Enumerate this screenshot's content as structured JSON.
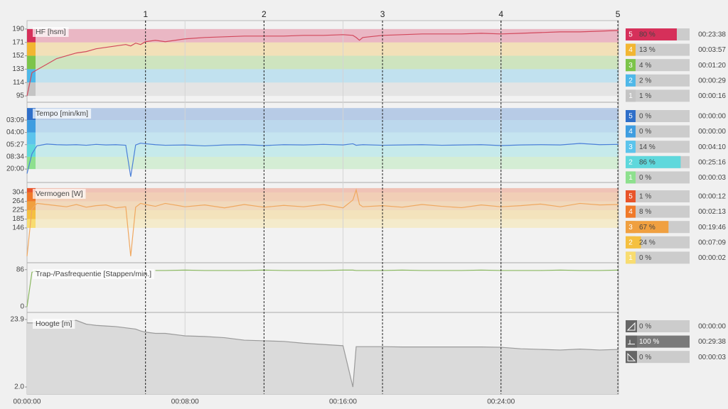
{
  "laps": [
    {
      "label": "1",
      "x": 360
    },
    {
      "label": "2",
      "x": 720
    },
    {
      "label": "3",
      "x": 1080
    },
    {
      "label": "4",
      "x": 1440
    },
    {
      "label": "5",
      "x": 1795
    }
  ],
  "time_axis": {
    "xlim": [
      0,
      1797
    ],
    "xticks": [
      {
        "value": 0,
        "label": "00:00:00"
      },
      {
        "value": 480,
        "label": "00:08:00"
      },
      {
        "value": 960,
        "label": "00:16:00"
      },
      {
        "value": 1440,
        "label": "00:24:00"
      }
    ]
  },
  "chart_data": [
    {
      "type": "line",
      "title": "HF [hsm]",
      "x": [
        0,
        15,
        30,
        60,
        90,
        120,
        150,
        180,
        210,
        240,
        270,
        300,
        315,
        330,
        345,
        360,
        390,
        420,
        480,
        540,
        600,
        660,
        720,
        780,
        840,
        900,
        960,
        990,
        1000,
        1010,
        1020,
        1080,
        1140,
        1200,
        1260,
        1320,
        1380,
        1440,
        1500,
        1560,
        1620,
        1680,
        1740,
        1797
      ],
      "series": [
        {
          "color": "#d2485c",
          "values": [
            95,
            128,
            132,
            140,
            148,
            152,
            156,
            158,
            162,
            164,
            166,
            168,
            166,
            170,
            168,
            172,
            174,
            172,
            176,
            178,
            179,
            180,
            180,
            180,
            181,
            181,
            182,
            181,
            178,
            174,
            178,
            181,
            182,
            183,
            183,
            183,
            184,
            183,
            184,
            185,
            186,
            186,
            187,
            188
          ]
        }
      ],
      "ylim": [
        86,
        202
      ],
      "yticks": [
        190,
        171,
        152,
        133,
        114,
        95
      ],
      "zones": [
        {
          "label": "5",
          "min": 171,
          "max": 190,
          "color": "#d6305a",
          "share": 80,
          "share_label": "80 %",
          "time": "00:23:38"
        },
        {
          "label": "4",
          "min": 152,
          "max": 171,
          "color": "#f2b632",
          "share": 13,
          "share_label": "13 %",
          "time": "00:03:57"
        },
        {
          "label": "3",
          "min": 133,
          "max": 152,
          "color": "#7cc44a",
          "share": 4,
          "share_label": "4 %",
          "time": "00:01:20"
        },
        {
          "label": "2",
          "min": 114,
          "max": 133,
          "color": "#4fb8e8",
          "share": 2,
          "share_label": "2 %",
          "time": "00:00:29"
        },
        {
          "label": "1",
          "min": 95,
          "max": 114,
          "color": "#c4c4c4",
          "share": 1,
          "share_label": "1 %",
          "time": "00:00:16"
        }
      ]
    },
    {
      "type": "line",
      "title": "Tempo [min/km]",
      "x": [
        0,
        15,
        30,
        60,
        90,
        120,
        150,
        180,
        210,
        240,
        270,
        300,
        315,
        330,
        345,
        360,
        390,
        420,
        480,
        540,
        600,
        660,
        720,
        780,
        840,
        900,
        960,
        990,
        1000,
        1010,
        1020,
        1080,
        1140,
        1200,
        1260,
        1320,
        1380,
        1440,
        1500,
        1560,
        1620,
        1680,
        1740,
        1797
      ],
      "series": [
        {
          "color": "#4a7fd8",
          "values": [
            1.5,
            8,
            10.6,
            11.2,
            11.0,
            10.9,
            11.0,
            10.8,
            11.1,
            10.9,
            11.0,
            10.8,
            0.5,
            10.9,
            11.5,
            11.3,
            11.0,
            10.8,
            10.9,
            10.6,
            10.9,
            11.0,
            10.7,
            11.0,
            10.9,
            11.1,
            10.9,
            11.3,
            10.8,
            10.9,
            11.0,
            10.8,
            10.9,
            11.0,
            10.8,
            10.9,
            11.0,
            10.7,
            10.9,
            11.0,
            10.9,
            11.4,
            11.0,
            11.1
          ]
        }
      ],
      "ylim": [
        -1.4,
        24.9
      ],
      "yticks": [
        {
          "value": 19.05,
          "label": "03:09"
        },
        {
          "value": 15,
          "label": "04:00"
        },
        {
          "value": 11.01,
          "label": "05:27"
        },
        {
          "value": 7,
          "label": "08:34"
        },
        {
          "value": 3,
          "label": "20:00"
        }
      ],
      "zones": [
        {
          "label": "5",
          "min": 19.05,
          "max": 23,
          "color": "#2f6fc9",
          "share": 0,
          "share_label": "0 %",
          "time": "00:00:00"
        },
        {
          "label": "4",
          "min": 15,
          "max": 19.05,
          "color": "#3f9de0",
          "share": 0,
          "share_label": "0 %",
          "time": "00:00:00"
        },
        {
          "label": "3",
          "min": 11.01,
          "max": 15,
          "color": "#5cc4ec",
          "share": 14,
          "share_label": "14 %",
          "time": "00:04:10"
        },
        {
          "label": "2",
          "min": 7,
          "max": 11.01,
          "color": "#5fd8dc",
          "share": 86,
          "share_label": "86 %",
          "time": "00:25:16"
        },
        {
          "label": "1",
          "min": 3,
          "max": 7,
          "color": "#8ee08e",
          "share": 0,
          "share_label": "0 %",
          "time": "00:00:03"
        }
      ]
    },
    {
      "type": "line",
      "title": "Vermogen [W]",
      "x": [
        0,
        15,
        30,
        60,
        90,
        120,
        150,
        180,
        210,
        240,
        270,
        300,
        315,
        330,
        345,
        360,
        390,
        420,
        480,
        540,
        600,
        660,
        720,
        780,
        840,
        900,
        960,
        990,
        1000,
        1010,
        1020,
        1080,
        1140,
        1200,
        1260,
        1320,
        1380,
        1440,
        1500,
        1560,
        1620,
        1680,
        1740,
        1797
      ],
      "series": [
        {
          "color": "#f0a860",
          "values": [
            20,
            230,
            255,
            250,
            245,
            240,
            250,
            238,
            245,
            248,
            235,
            240,
            20,
            238,
            255,
            250,
            242,
            255,
            240,
            248,
            235,
            250,
            238,
            246,
            240,
            250,
            235,
            270,
            315,
            250,
            240,
            245,
            238,
            250,
            242,
            236,
            248,
            240,
            245,
            252,
            240,
            255,
            248,
            250
          ]
        }
      ],
      "ylim": [
        -9,
        348
      ],
      "yticks": [
        304,
        264,
        225,
        185,
        146
      ],
      "zones": [
        {
          "label": "5",
          "min": 304,
          "max": 323,
          "color": "#e8542a",
          "share": 1,
          "share_label": "1 %",
          "time": "00:00:12"
        },
        {
          "label": "4",
          "min": 264,
          "max": 304,
          "color": "#f07a2a",
          "share": 8,
          "share_label": "8 %",
          "time": "00:02:13"
        },
        {
          "label": "3",
          "min": 225,
          "max": 264,
          "color": "#f0a040",
          "share": 67,
          "share_label": "67 %",
          "time": "00:19:46"
        },
        {
          "label": "2",
          "min": 185,
          "max": 225,
          "color": "#f5c040",
          "share": 24,
          "share_label": "24 %",
          "time": "00:07:09"
        },
        {
          "label": "1",
          "min": 146,
          "max": 185,
          "color": "#f8dc70",
          "share": 0,
          "share_label": "0 %",
          "time": "00:00:02"
        }
      ]
    },
    {
      "type": "line",
      "title": "Trap-/Pasfrequentie [Stappen/min.]",
      "x": [
        0,
        15,
        30,
        60,
        90,
        120,
        150,
        180,
        210,
        240,
        270,
        300,
        315,
        330,
        345,
        360,
        390,
        420,
        480,
        540,
        600,
        660,
        720,
        780,
        840,
        900,
        960,
        990,
        1000,
        1010,
        1020,
        1080,
        1140,
        1200,
        1260,
        1320,
        1380,
        1440,
        1500,
        1560,
        1620,
        1680,
        1740,
        1797
      ],
      "series": [
        {
          "color": "#8ab860",
          "values": [
            0,
            80,
            84,
            null,
            null,
            null,
            null,
            null,
            null,
            null,
            null,
            null,
            null,
            null,
            null,
            null,
            84,
            84,
            85,
            84,
            84,
            84,
            85,
            84,
            84,
            84,
            85,
            85,
            84,
            84,
            84,
            84,
            85,
            84,
            84,
            84,
            85,
            84,
            84,
            84,
            85,
            84,
            84,
            85
          ]
        }
      ],
      "ylim": [
        -13,
        102
      ],
      "yticks": [
        86,
        0
      ]
    },
    {
      "type": "area",
      "title": "Hoogte [m]",
      "x": [
        0,
        15,
        30,
        60,
        90,
        120,
        150,
        180,
        210,
        240,
        270,
        300,
        315,
        330,
        345,
        360,
        390,
        420,
        480,
        540,
        600,
        660,
        720,
        780,
        840,
        900,
        960,
        990,
        1000,
        1010,
        1020,
        1080,
        1140,
        1200,
        1260,
        1320,
        1380,
        1440,
        1500,
        1560,
        1620,
        1680,
        1740,
        1797
      ],
      "series": [
        {
          "color": "#9a9a9a",
          "values": [
            22.8,
            22.8,
            22.8,
            22.8,
            22.6,
            23.6,
            23.6,
            22.4,
            22.0,
            21.8,
            21.6,
            21.2,
            21.0,
            20.8,
            20.2,
            19.8,
            19.4,
            19.4,
            18.6,
            18.4,
            18.0,
            17.2,
            17.0,
            16.8,
            16.2,
            15.8,
            15.4,
            2.0,
            15.1,
            15.1,
            15.1,
            15.1,
            15.0,
            15.0,
            15.0,
            15.0,
            15.0,
            14.9,
            14.4,
            14.2,
            14.0,
            14.3,
            14.0,
            14.2
          ]
        }
      ],
      "ylim": [
        -0.3,
        26.2
      ],
      "yticks": [
        23.9,
        {
          "value": 2,
          "label": "2.0"
        }
      ],
      "gradient_zones": [
        {
          "color": "#cccccc",
          "share": 0,
          "share_label": "0 %",
          "time": "00:00:00"
        },
        {
          "color": "#7a7a7a",
          "share": 100,
          "share_label": "100 %",
          "time": "00:29:38"
        },
        {
          "color": "#cccccc",
          "share": 0,
          "share_label": "0 %",
          "time": "00:00:03"
        }
      ]
    }
  ]
}
